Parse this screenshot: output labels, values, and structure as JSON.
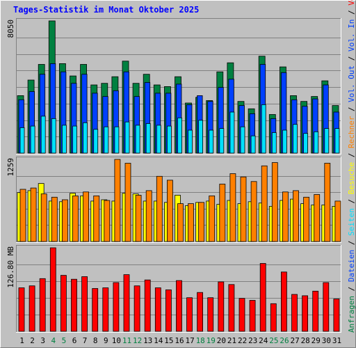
{
  "chart_data": {
    "type": "bar",
    "title": "Tages-Statistik im Monat Oktober 2025",
    "categories": [
      "1",
      "2",
      "3",
      "4",
      "5",
      "6",
      "7",
      "8",
      "9",
      "10",
      "11",
      "12",
      "13",
      "14",
      "15",
      "16",
      "17",
      "18",
      "19",
      "20",
      "21",
      "22",
      "23",
      "24",
      "25",
      "26",
      "27",
      "28",
      "29",
      "30",
      "31"
    ],
    "weekend_days": [
      "4",
      "5",
      "11",
      "12",
      "18",
      "19",
      "25",
      "26"
    ],
    "colors": {
      "anfragen": "#008040",
      "dateien": "#0040ff",
      "seiten": "#00e0ff",
      "besuche": "#ffff00",
      "rechner": "#ff8000",
      "volumen": "#ff0000",
      "weekday_label": "#000000",
      "weekend_label": "#008040",
      "title": "#0000ff"
    },
    "panels": [
      {
        "id": "hits",
        "max_label": "8050",
        "ylim": [
          0,
          8050
        ],
        "series": [
          {
            "name": "Anfragen",
            "values": [
              3500,
              4450,
              5400,
              8050,
              5450,
              4700,
              5400,
              4150,
              4250,
              4650,
              5600,
              4250,
              4800,
              4150,
              4050,
              4650,
              3050,
              3400,
              3200,
              4950,
              5500,
              3150,
              2700,
              5900,
              2350,
              5250,
              3500,
              3150,
              3450,
              4400,
              2900
            ]
          },
          {
            "name": "Dateien",
            "values": [
              3250,
              3750,
              4800,
              5450,
              4950,
              4250,
              4800,
              3650,
              3450,
              3800,
              4950,
              3450,
              4300,
              3650,
              3650,
              4200,
              2950,
              3500,
              3150,
              4000,
              4500,
              2900,
              2400,
              5400,
              2100,
              4900,
              3250,
              2850,
              3300,
              4150,
              2500
            ]
          },
          {
            "name": "Seiten",
            "values": [
              1550,
              1650,
              2250,
              2100,
              1700,
              1650,
              1850,
              1450,
              1600,
              1600,
              1900,
              1700,
              1800,
              1700,
              1650,
              2150,
              1400,
              2000,
              1400,
              1500,
              2500,
              1600,
              1050,
              2950,
              1250,
              1400,
              1750,
              1200,
              1300,
              1500,
              1500
            ]
          }
        ]
      },
      {
        "id": "visits",
        "max_label": "1259",
        "ylim": [
          0,
          1259
        ],
        "series": [
          {
            "name": "Besuche",
            "values": [
              750,
              780,
              890,
              620,
              610,
              740,
              700,
              620,
              640,
              620,
              740,
              730,
              620,
              620,
              600,
              710,
              550,
              600,
              620,
              570,
              630,
              580,
              610,
              590,
              540,
              630,
              650,
              580,
              560,
              560,
              540
            ]
          },
          {
            "name": "Rechner",
            "values": [
              800,
              820,
              730,
              680,
              640,
              700,
              760,
              700,
              630,
              1259,
              1200,
              710,
              780,
              1000,
              940,
              580,
              580,
              600,
              700,
              880,
              1040,
              990,
              920,
              1160,
              1210,
              760,
              780,
              680,
              720,
              1200,
              620
            ]
          }
        ]
      },
      {
        "id": "volume",
        "max_label": "126.80 MB",
        "ylim": [
          0,
          126.8
        ],
        "series": [
          {
            "name": "Volumen",
            "values": [
              66,
              69,
              80,
              126.8,
              85,
              79,
              83,
              65,
              66,
              74,
              86,
              69,
              78,
              66,
              63,
              77,
              51,
              59,
              51,
              75,
              71,
              50,
              47,
              103,
              42,
              90,
              56,
              54,
              61,
              74,
              49
            ]
          }
        ]
      }
    ],
    "side_legend": [
      {
        "text": "Anfragen",
        "color": "#008040"
      },
      {
        "text": " / ",
        "color": "#000000"
      },
      {
        "text": "Dateien",
        "color": "#0040ff"
      },
      {
        "text": " / ",
        "color": "#000000"
      },
      {
        "text": "Seiten",
        "color": "#00e0ff"
      },
      {
        "text": " / ",
        "color": "#000000"
      },
      {
        "text": "Besuche",
        "color": "#ffff00"
      },
      {
        "text": " / ",
        "color": "#000000"
      },
      {
        "text": "Rechner",
        "color": "#ff8000"
      },
      {
        "text": " / ",
        "color": "#000000"
      },
      {
        "text": "Vol. Out",
        "color": "#0040ff"
      },
      {
        "text": " / ",
        "color": "#000000"
      },
      {
        "text": "Vol. In",
        "color": "#0040ff"
      },
      {
        "text": " / ",
        "color": "#000000"
      },
      {
        "text": "Volumen",
        "color": "#ff0000"
      }
    ]
  }
}
